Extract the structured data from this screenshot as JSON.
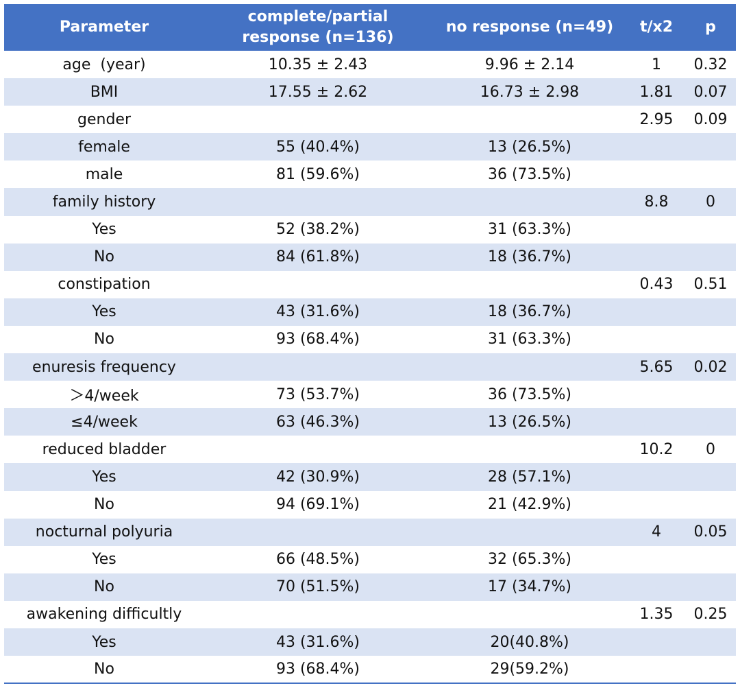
{
  "headers": {
    "parameter": "Parameter",
    "group1": "complete/partial response (n=136)",
    "group2": "no response (n=49)",
    "stat": "t/x2",
    "p": "p"
  },
  "rows": [
    {
      "parameter": "age  (year)",
      "group1": "10.35 ± 2.43",
      "group2": "9.96 ± 2.14",
      "stat": "1",
      "p": "0.32"
    },
    {
      "parameter": "BMI",
      "group1": "17.55 ± 2.62",
      "group2": "16.73 ± 2.98",
      "stat": "1.81",
      "p": "0.07"
    },
    {
      "parameter": "gender",
      "group1": "",
      "group2": "",
      "stat": "2.95",
      "p": "0.09"
    },
    {
      "parameter": "female",
      "group1": "55 (40.4%)",
      "group2": "13 (26.5%)",
      "stat": "",
      "p": ""
    },
    {
      "parameter": "male",
      "group1": "81 (59.6%)",
      "group2": "36 (73.5%)",
      "stat": "",
      "p": ""
    },
    {
      "parameter": "family history",
      "group1": "",
      "group2": "",
      "stat": "8.8",
      "p": "0"
    },
    {
      "parameter": "Yes",
      "group1": "52 (38.2%)",
      "group2": "31 (63.3%)",
      "stat": "",
      "p": ""
    },
    {
      "parameter": "No",
      "group1": "84 (61.8%)",
      "group2": "18 (36.7%)",
      "stat": "",
      "p": ""
    },
    {
      "parameter": "constipation",
      "group1": "",
      "group2": "",
      "stat": "0.43",
      "p": "0.51"
    },
    {
      "parameter": "Yes",
      "group1": "43 (31.6%)",
      "group2": "18 (36.7%)",
      "stat": "",
      "p": ""
    },
    {
      "parameter": "No",
      "group1": "93 (68.4%)",
      "group2": "31 (63.3%)",
      "stat": "",
      "p": ""
    },
    {
      "parameter": "enuresis frequency",
      "group1": "",
      "group2": "",
      "stat": "5.65",
      "p": "0.02"
    },
    {
      "parameter": "＞4/week",
      "group1": "73 (53.7%)",
      "group2": "36 (73.5%)",
      "stat": "",
      "p": ""
    },
    {
      "parameter": "≤4/week",
      "group1": "63 (46.3%)",
      "group2": "13 (26.5%)",
      "stat": "",
      "p": ""
    },
    {
      "parameter": "reduced bladder",
      "group1": "",
      "group2": "",
      "stat": "10.2",
      "p": "0"
    },
    {
      "parameter": "Yes",
      "group1": "42 (30.9%)",
      "group2": "28 (57.1%)",
      "stat": "",
      "p": ""
    },
    {
      "parameter": "No",
      "group1": "94 (69.1%)",
      "group2": "21 (42.9%)",
      "stat": "",
      "p": ""
    },
    {
      "parameter": "nocturnal polyuria",
      "group1": "",
      "group2": "",
      "stat": "4",
      "p": "0.05"
    },
    {
      "parameter": "Yes",
      "group1": "66 (48.5%)",
      "group2": "32 (65.3%)",
      "stat": "",
      "p": ""
    },
    {
      "parameter": "No",
      "group1": "70 (51.5%)",
      "group2": "17 (34.7%)",
      "stat": "",
      "p": ""
    },
    {
      "parameter": "awakening difficultly",
      "group1": "",
      "group2": "",
      "stat": "1.35",
      "p": "0.25"
    },
    {
      "parameter": "Yes",
      "group1": "43 (31.6%)",
      "group2": "20(40.8%)",
      "stat": "",
      "p": ""
    },
    {
      "parameter": "No",
      "group1": "93 (68.4%)",
      "group2": "29(59.2%)",
      "stat": "",
      "p": ""
    }
  ],
  "colors": {
    "header_bg": "#4472c4",
    "band_bg": "#dae3f3",
    "header_text": "#ffffff"
  }
}
